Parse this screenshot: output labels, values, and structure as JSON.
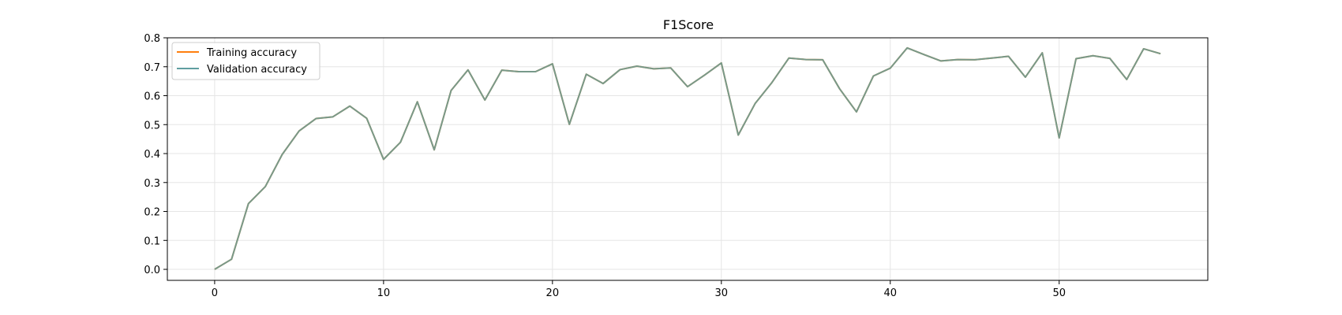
{
  "chart_data": {
    "type": "line",
    "title": "F1Score",
    "xlabel": "",
    "ylabel": "",
    "xlim": [
      -2.8,
      58.8
    ],
    "ylim": [
      -0.038,
      0.8
    ],
    "x_ticks": [
      0,
      10,
      20,
      30,
      40,
      50
    ],
    "y_ticks": [
      0.0,
      0.1,
      0.2,
      0.3,
      0.4,
      0.5,
      0.6,
      0.7,
      0.8
    ],
    "x_tick_labels": [
      "0",
      "10",
      "20",
      "30",
      "40",
      "50"
    ],
    "y_tick_labels": [
      "0.0",
      "0.1",
      "0.2",
      "0.3",
      "0.4",
      "0.5",
      "0.6",
      "0.7",
      "0.8"
    ],
    "grid": true,
    "legend_position": "top-left",
    "x": [
      0,
      1,
      2,
      3,
      4,
      5,
      6,
      7,
      8,
      9,
      10,
      11,
      12,
      13,
      14,
      15,
      16,
      17,
      18,
      19,
      20,
      21,
      22,
      23,
      24,
      25,
      26,
      27,
      28,
      29,
      30,
      31,
      32,
      33,
      34,
      35,
      36,
      37,
      38,
      39,
      40,
      41,
      42,
      43,
      44,
      45,
      46,
      47,
      48,
      49,
      50,
      51,
      52,
      53,
      54,
      55,
      56
    ],
    "series": [
      {
        "name": "Training accuracy",
        "color": "#ff7f0e",
        "values": [
          0.0,
          0.035,
          0.227,
          0.286,
          0.397,
          0.478,
          0.521,
          0.527,
          0.564,
          0.522,
          0.38,
          0.439,
          0.579,
          0.413,
          0.618,
          0.689,
          0.585,
          0.688,
          0.683,
          0.683,
          0.71,
          0.501,
          0.674,
          0.642,
          0.69,
          0.702,
          0.693,
          0.696,
          0.631,
          0.671,
          0.713,
          0.464,
          0.573,
          0.646,
          0.73,
          0.725,
          0.724,
          0.624,
          0.544,
          0.668,
          0.695,
          0.765,
          0.742,
          0.72,
          0.725,
          0.724,
          0.73,
          0.736,
          0.664,
          0.748,
          0.454,
          0.728,
          0.738,
          0.729,
          0.656,
          0.762,
          0.745
        ]
      },
      {
        "name": "Validation accuracy",
        "color": "#5f9ea0",
        "values": [
          0.0,
          0.035,
          0.227,
          0.286,
          0.397,
          0.478,
          0.521,
          0.527,
          0.564,
          0.522,
          0.38,
          0.439,
          0.579,
          0.413,
          0.618,
          0.689,
          0.585,
          0.688,
          0.683,
          0.683,
          0.71,
          0.501,
          0.674,
          0.642,
          0.69,
          0.702,
          0.693,
          0.696,
          0.631,
          0.671,
          0.713,
          0.464,
          0.573,
          0.646,
          0.73,
          0.725,
          0.724,
          0.624,
          0.544,
          0.668,
          0.695,
          0.765,
          0.742,
          0.72,
          0.725,
          0.724,
          0.73,
          0.736,
          0.664,
          0.748,
          0.454,
          0.728,
          0.738,
          0.729,
          0.656,
          0.762,
          0.745
        ]
      }
    ]
  }
}
